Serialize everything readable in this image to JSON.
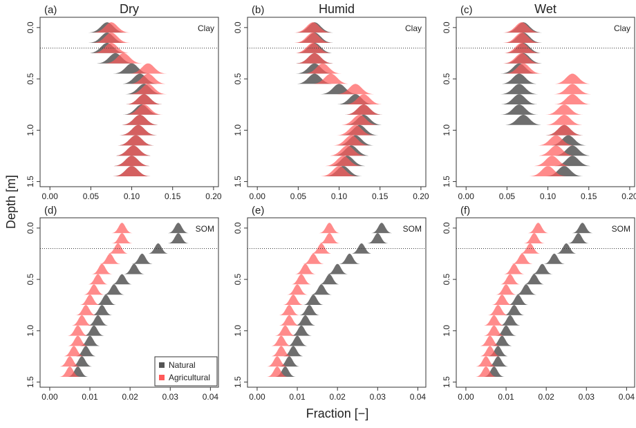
{
  "xlabel": "Fraction [−]",
  "ylabel": "Depth [m]",
  "chart_data": [
    {
      "type": "ridgeline",
      "panel": "(a)",
      "title": "Dry",
      "label": "Clay",
      "xlim": [
        -0.012,
        0.206
      ],
      "xticks": [
        {
          "value": 0,
          "label": "0.00"
        },
        {
          "value": 0.05,
          "label": "0.05"
        },
        {
          "value": 0.1,
          "label": "0.10"
        },
        {
          "value": 0.15,
          "label": "0.15"
        },
        {
          "value": 0.2,
          "label": "0.20"
        }
      ],
      "ylim": [
        -0.1,
        1.55
      ],
      "yticks": [
        {
          "value": 0,
          "label": "0.0"
        },
        0.5,
        {
          "value": 1,
          "label": "1.0"
        },
        1.5
      ],
      "hline": 0.2,
      "depths": [
        0.05,
        0.15,
        0.25,
        0.35,
        0.45,
        0.55,
        0.65,
        0.75,
        0.85,
        0.95,
        1.05,
        1.15,
        1.25,
        1.35,
        1.45
      ],
      "series": [
        {
          "name": "Natural",
          "color": "#555555",
          "values": [
            0.07,
            0.07,
            0.07,
            0.08,
            0.1,
            0.11,
            0.115,
            0.115,
            0.112,
            0.11,
            0.108,
            0.105,
            0.102,
            0.1,
            0.1
          ]
        },
        {
          "name": "Agricultural",
          "color": "#ff5a5a",
          "values": [
            0.075,
            0.075,
            0.075,
            0.09,
            0.12,
            0.12,
            0.12,
            0.115,
            0.115,
            0.11,
            0.108,
            0.105,
            0.102,
            0.1,
            0.1
          ]
        }
      ]
    },
    {
      "type": "ridgeline",
      "panel": "(b)",
      "title": "Humid",
      "label": "Clay",
      "xlim": [
        -0.012,
        0.206
      ],
      "xticks": [
        {
          "value": 0,
          "label": "0.00"
        },
        {
          "value": 0.05,
          "label": "0.05"
        },
        {
          "value": 0.1,
          "label": "0.10"
        },
        {
          "value": 0.15,
          "label": "0.15"
        },
        {
          "value": 0.2,
          "label": "0.20"
        }
      ],
      "ylim": [
        -0.1,
        1.55
      ],
      "yticks": [
        {
          "value": 0,
          "label": "0.0"
        },
        0.5,
        {
          "value": 1,
          "label": "1.0"
        },
        1.5
      ],
      "hline": 0.2,
      "depths": [
        0.05,
        0.15,
        0.25,
        0.35,
        0.45,
        0.55,
        0.65,
        0.75,
        0.85,
        0.95,
        1.05,
        1.15,
        1.25,
        1.35,
        1.45
      ],
      "series": [
        {
          "name": "Natural",
          "color": "#555555",
          "values": [
            0.07,
            0.07,
            0.07,
            0.07,
            0.07,
            0.07,
            0.1,
            0.12,
            0.13,
            0.13,
            0.125,
            0.12,
            0.115,
            0.11,
            0.105
          ]
        },
        {
          "name": "Agricultural",
          "color": "#ff5a5a",
          "values": [
            0.068,
            0.068,
            0.068,
            0.07,
            0.08,
            0.09,
            0.12,
            0.13,
            0.13,
            0.125,
            0.12,
            0.115,
            0.11,
            0.105,
            0.1
          ]
        }
      ]
    },
    {
      "type": "ridgeline",
      "panel": "(c)",
      "title": "Wet",
      "label": "Clay",
      "xlim": [
        -0.012,
        0.206
      ],
      "xticks": [
        {
          "value": 0,
          "label": "0.00"
        },
        {
          "value": 0.05,
          "label": "0.05"
        },
        {
          "value": 0.1,
          "label": "0.10"
        },
        {
          "value": 0.15,
          "label": "0.15"
        },
        {
          "value": 0.2,
          "label": "0.20"
        }
      ],
      "ylim": [
        -0.1,
        1.55
      ],
      "yticks": [
        {
          "value": 0,
          "label": "0.0"
        },
        0.5,
        {
          "value": 1,
          "label": "1.0"
        },
        1.5
      ],
      "hline": 0.2,
      "depths": [
        0.05,
        0.15,
        0.25,
        0.35,
        0.45,
        0.55,
        0.65,
        0.75,
        0.85,
        0.95,
        1.05,
        1.15,
        1.25,
        1.35,
        1.45
      ],
      "series": [
        {
          "name": "Natural",
          "color": "#555555",
          "values": [
            0.07,
            0.07,
            0.07,
            0.07,
            0.065,
            0.065,
            0.065,
            0.065,
            0.065,
            0.07,
            0.12,
            0.125,
            0.13,
            0.13,
            0.12
          ]
        },
        {
          "name": "Agricultural",
          "color": "#ff5a5a",
          "values": [
            0.068,
            0.068,
            0.068,
            0.068,
            0.07,
            0.13,
            0.13,
            0.13,
            0.12,
            0.12,
            0.12,
            0.11,
            0.11,
            0.105,
            0.1
          ]
        }
      ]
    },
    {
      "type": "ridgeline",
      "panel": "(d)",
      "label": "SOM",
      "legend": "lower right",
      "xlim": [
        -0.0024,
        0.042
      ],
      "xticks": [
        {
          "value": 0,
          "label": "0.00"
        },
        {
          "value": 0.01,
          "label": "0.01"
        },
        {
          "value": 0.02,
          "label": "0.02"
        },
        {
          "value": 0.03,
          "label": "0.03"
        },
        {
          "value": 0.04,
          "label": "0.04"
        }
      ],
      "ylim": [
        -0.1,
        1.55
      ],
      "yticks": [
        {
          "value": 0,
          "label": "0.0"
        },
        0.5,
        {
          "value": 1,
          "label": "1.0"
        },
        1.5
      ],
      "hline": 0.2,
      "depths": [
        0.05,
        0.15,
        0.25,
        0.35,
        0.45,
        0.55,
        0.65,
        0.75,
        0.85,
        0.95,
        1.05,
        1.15,
        1.25,
        1.35,
        1.45
      ],
      "series": [
        {
          "name": "Natural",
          "color": "#555555",
          "values": [
            0.032,
            0.032,
            0.027,
            0.023,
            0.021,
            0.018,
            0.016,
            0.014,
            0.013,
            0.012,
            0.011,
            0.01,
            0.009,
            0.008,
            0.007
          ]
        },
        {
          "name": "Agricultural",
          "color": "#ff5a5a",
          "values": [
            0.018,
            0.018,
            0.017,
            0.015,
            0.013,
            0.012,
            0.011,
            0.01,
            0.009,
            0.008,
            0.007,
            0.007,
            0.006,
            0.005,
            0.005
          ]
        }
      ]
    },
    {
      "type": "ridgeline",
      "panel": "(e)",
      "label": "SOM",
      "xlim": [
        -0.0024,
        0.042
      ],
      "xticks": [
        {
          "value": 0,
          "label": "0.00"
        },
        {
          "value": 0.01,
          "label": "0.01"
        },
        {
          "value": 0.02,
          "label": "0.02"
        },
        {
          "value": 0.03,
          "label": "0.03"
        },
        {
          "value": 0.04,
          "label": "0.04"
        }
      ],
      "ylim": [
        -0.1,
        1.55
      ],
      "yticks": [
        {
          "value": 0,
          "label": "0.0"
        },
        0.5,
        {
          "value": 1,
          "label": "1.0"
        },
        1.5
      ],
      "hline": 0.2,
      "depths": [
        0.05,
        0.15,
        0.25,
        0.35,
        0.45,
        0.55,
        0.65,
        0.75,
        0.85,
        0.95,
        1.05,
        1.15,
        1.25,
        1.35,
        1.45
      ],
      "series": [
        {
          "name": "Natural",
          "color": "#555555",
          "values": [
            0.031,
            0.03,
            0.026,
            0.023,
            0.02,
            0.018,
            0.016,
            0.014,
            0.013,
            0.012,
            0.011,
            0.01,
            0.009,
            0.008,
            0.007
          ]
        },
        {
          "name": "Agricultural",
          "color": "#ff5a5a",
          "values": [
            0.018,
            0.018,
            0.016,
            0.014,
            0.012,
            0.011,
            0.01,
            0.009,
            0.008,
            0.008,
            0.007,
            0.006,
            0.006,
            0.005,
            0.005
          ]
        }
      ]
    },
    {
      "type": "ridgeline",
      "panel": "(f)",
      "label": "SOM",
      "xlim": [
        -0.0024,
        0.042
      ],
      "xticks": [
        {
          "value": 0,
          "label": "0.00"
        },
        {
          "value": 0.01,
          "label": "0.01"
        },
        {
          "value": 0.02,
          "label": "0.02"
        },
        {
          "value": 0.03,
          "label": "0.03"
        },
        {
          "value": 0.04,
          "label": "0.04"
        }
      ],
      "ylim": [
        -0.1,
        1.55
      ],
      "yticks": [
        {
          "value": 0,
          "label": "0.0"
        },
        0.5,
        {
          "value": 1,
          "label": "1.0"
        },
        1.5
      ],
      "hline": 0.2,
      "depths": [
        0.05,
        0.15,
        0.25,
        0.35,
        0.45,
        0.55,
        0.65,
        0.75,
        0.85,
        0.95,
        1.05,
        1.15,
        1.25,
        1.35,
        1.45
      ],
      "series": [
        {
          "name": "Natural",
          "color": "#555555",
          "values": [
            0.029,
            0.028,
            0.025,
            0.022,
            0.019,
            0.017,
            0.015,
            0.013,
            0.012,
            0.011,
            0.01,
            0.009,
            0.008,
            0.008,
            0.007
          ]
        },
        {
          "name": "Agricultural",
          "color": "#ff5a5a",
          "values": [
            0.018,
            0.017,
            0.016,
            0.014,
            0.012,
            0.011,
            0.01,
            0.009,
            0.008,
            0.007,
            0.007,
            0.006,
            0.006,
            0.005,
            0.005
          ]
        }
      ]
    }
  ]
}
